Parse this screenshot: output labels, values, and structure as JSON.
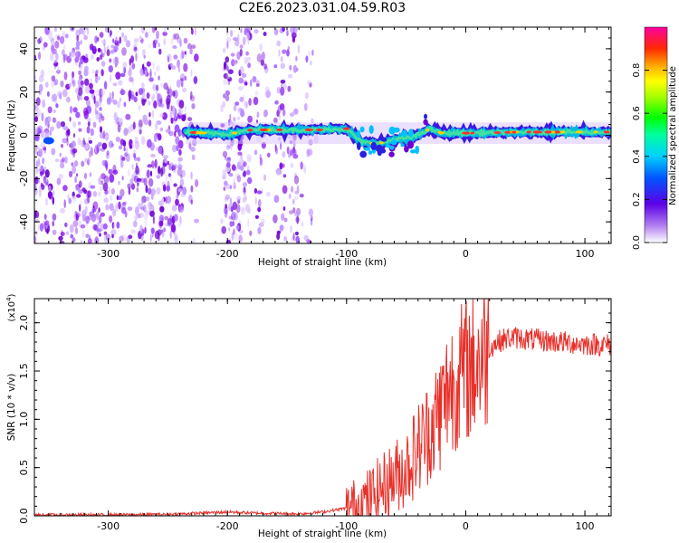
{
  "title": "C2E6.2023.031.04.59.R03",
  "colors": {
    "spectrogram_low": "#8a2be2",
    "snr_line": "#e8302a",
    "axis": "#000000"
  },
  "chart_data": [
    {
      "type": "heatmap",
      "name": "spectrogram",
      "xlabel": "Height of straight line (km)",
      "ylabel": "Frequency (Hz)",
      "xlim": [
        -362,
        122
      ],
      "ylim": [
        -50,
        50
      ],
      "x_ticks": [
        -300,
        -200,
        -100,
        0,
        100
      ],
      "y_ticks": [
        -40,
        -20,
        0,
        20,
        40
      ],
      "colorbar": {
        "label": "Normalized spectral amplitude",
        "range": [
          0.0,
          1.0
        ],
        "ticks": [
          "0.0",
          "0.2",
          "0.4",
          "0.6",
          "0.8"
        ],
        "colormap": "rainbow"
      },
      "signal_track": [
        {
          "x": -350,
          "y": -2.5
        },
        {
          "x": -235,
          "y": 1.5
        },
        {
          "x": -200,
          "y": 0.5
        },
        {
          "x": -180,
          "y": 2.5
        },
        {
          "x": -120,
          "y": 2.5
        },
        {
          "x": -100,
          "y": 3
        },
        {
          "x": -88,
          "y": -3
        },
        {
          "x": -75,
          "y": -4
        },
        {
          "x": -60,
          "y": -2
        },
        {
          "x": -45,
          "y": -1
        },
        {
          "x": -30,
          "y": 3
        },
        {
          "x": -20,
          "y": 1
        },
        {
          "x": 0,
          "y": 1
        },
        {
          "x": 50,
          "y": 1.5
        },
        {
          "x": 122,
          "y": 1.5
        }
      ]
    },
    {
      "type": "line",
      "name": "snr",
      "xlabel": "Height of straight line (km)",
      "ylabel": "SNR (10 * v/v)",
      "y_multiplier_label": "(x10",
      "y_multiplier_exp": "4",
      "y_multiplier_close": ")",
      "xlim": [
        -362,
        122
      ],
      "ylim": [
        0,
        2.25
      ],
      "x_ticks": [
        -300,
        -200,
        -100,
        0,
        100
      ],
      "y_ticks": [
        "0.0",
        "0.5",
        "1.0",
        "1.5",
        "2.0"
      ],
      "series": [
        {
          "x": [
            -362,
            -300,
            -250,
            -220,
            -200,
            -180,
            -140,
            -120,
            -100,
            -90,
            -80,
            -70,
            -60,
            -50,
            -40,
            -30,
            -20,
            -15,
            -10,
            0,
            10,
            20,
            30,
            40,
            60,
            80,
            100,
            122
          ],
          "y": [
            0.01,
            0.01,
            0.015,
            0.03,
            0.04,
            0.03,
            0.02,
            0.04,
            0.08,
            0.12,
            0.2,
            0.3,
            0.4,
            0.5,
            0.7,
            0.9,
            1.1,
            1.3,
            1.4,
            1.5,
            1.6,
            1.75,
            1.82,
            1.85,
            1.82,
            1.8,
            1.78,
            1.77
          ]
        }
      ]
    }
  ]
}
